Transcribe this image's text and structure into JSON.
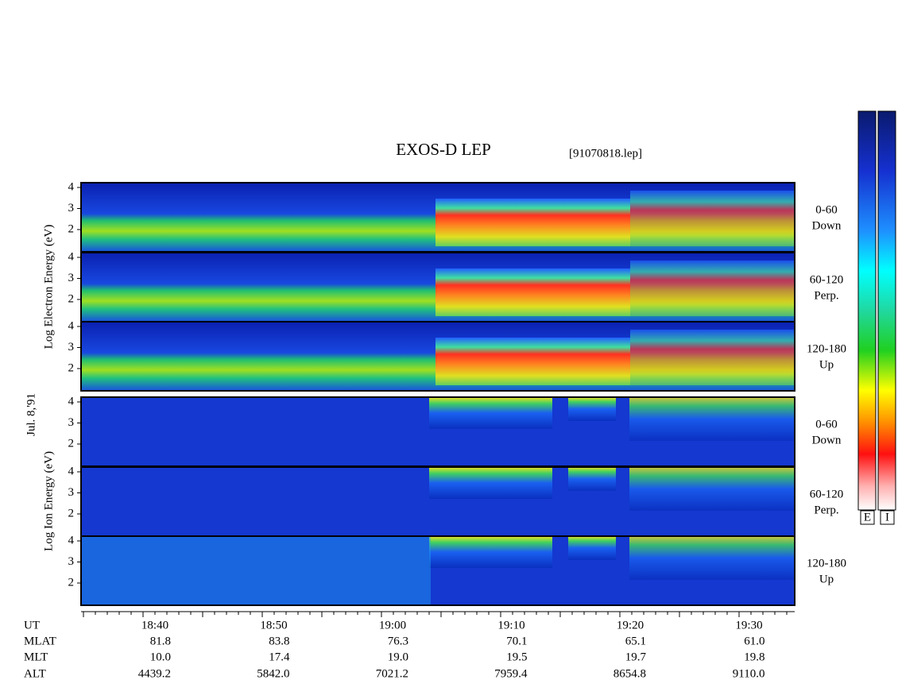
{
  "title": "EXOS-D LEP",
  "file": "[91070818.lep]",
  "date": "Jul. 8,'91",
  "panels": [
    {
      "ylabel": "Log Electron Energy (eV)",
      "yticks": [
        2,
        3,
        4
      ],
      "channels": [
        {
          "angle": "0-60",
          "dir": "Down"
        },
        {
          "angle": "60-120",
          "dir": "Perp."
        },
        {
          "angle": "120-180",
          "dir": "Up"
        }
      ]
    },
    {
      "ylabel": "Log Ion Energy (eV)",
      "yticks": [
        2,
        3,
        4
      ],
      "channels": [
        {
          "angle": "0-60",
          "dir": "Down"
        },
        {
          "angle": "60-120",
          "dir": "Perp."
        },
        {
          "angle": "120-180",
          "dir": "Up"
        }
      ]
    }
  ],
  "time_axis": {
    "row_labels": [
      "UT",
      "MLAT",
      "MLT",
      "ALT"
    ],
    "columns": [
      [
        "18:40",
        "81.8",
        "10.0",
        "4439.2"
      ],
      [
        "18:50",
        "83.8",
        "17.4",
        "5842.0"
      ],
      [
        "19:00",
        "76.3",
        "19.0",
        "7021.2"
      ],
      [
        "19:10",
        "70.1",
        "19.5",
        "7959.4"
      ],
      [
        "19:20",
        "65.1",
        "19.7",
        "8654.8"
      ],
      [
        "19:30",
        "61.0",
        "19.8",
        "9110.0"
      ]
    ]
  },
  "colorbar_labels": [
    "E",
    "I"
  ]
}
